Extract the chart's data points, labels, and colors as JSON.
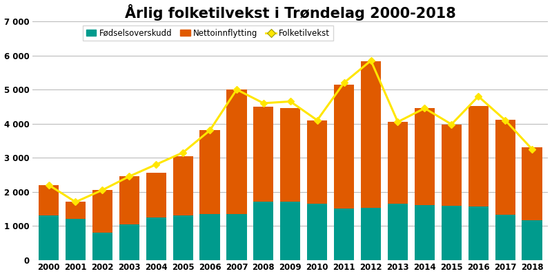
{
  "years": [
    2000,
    2001,
    2002,
    2003,
    2004,
    2005,
    2006,
    2007,
    2008,
    2009,
    2010,
    2011,
    2012,
    2013,
    2014,
    2015,
    2016,
    2017,
    2018
  ],
  "fodselsoverskudd": [
    1300,
    1200,
    800,
    1050,
    1250,
    1300,
    1350,
    1350,
    1700,
    1700,
    1650,
    1500,
    1530,
    1650,
    1600,
    1580,
    1560,
    1320,
    1160
  ],
  "nettoinnflytting": [
    900,
    500,
    1250,
    1400,
    1300,
    1750,
    2450,
    3650,
    2800,
    2750,
    2450,
    3650,
    4300,
    2400,
    2850,
    2400,
    2950,
    2800,
    2150
  ],
  "folketilvekst": [
    2200,
    1700,
    2050,
    2450,
    2800,
    3150,
    3800,
    5000,
    4600,
    4650,
    4100,
    5200,
    5850,
    4050,
    4450,
    3980,
    4800,
    4100,
    3250
  ],
  "bar_color_fodsels": "#009B8D",
  "bar_color_netto": "#E05A00",
  "line_color": "#FFE600",
  "line_marker": "D",
  "title": "Årlig folketilvekst i Trøndelag 2000-2018",
  "title_fontsize": 15,
  "legend_labels": [
    "Fødselsoverskudd",
    "Nettoinnflytting",
    "Folketilvekst"
  ],
  "ylim": [
    0,
    7000
  ],
  "yticks": [
    0,
    1000,
    2000,
    3000,
    4000,
    5000,
    6000,
    7000
  ],
  "ytick_labels": [
    "0",
    "1 000",
    "2 000",
    "3 000",
    "4 000",
    "5 000",
    "6 000",
    "7 000"
  ],
  "background_color": "#FFFFFF",
  "grid_color": "#BBBBBB"
}
